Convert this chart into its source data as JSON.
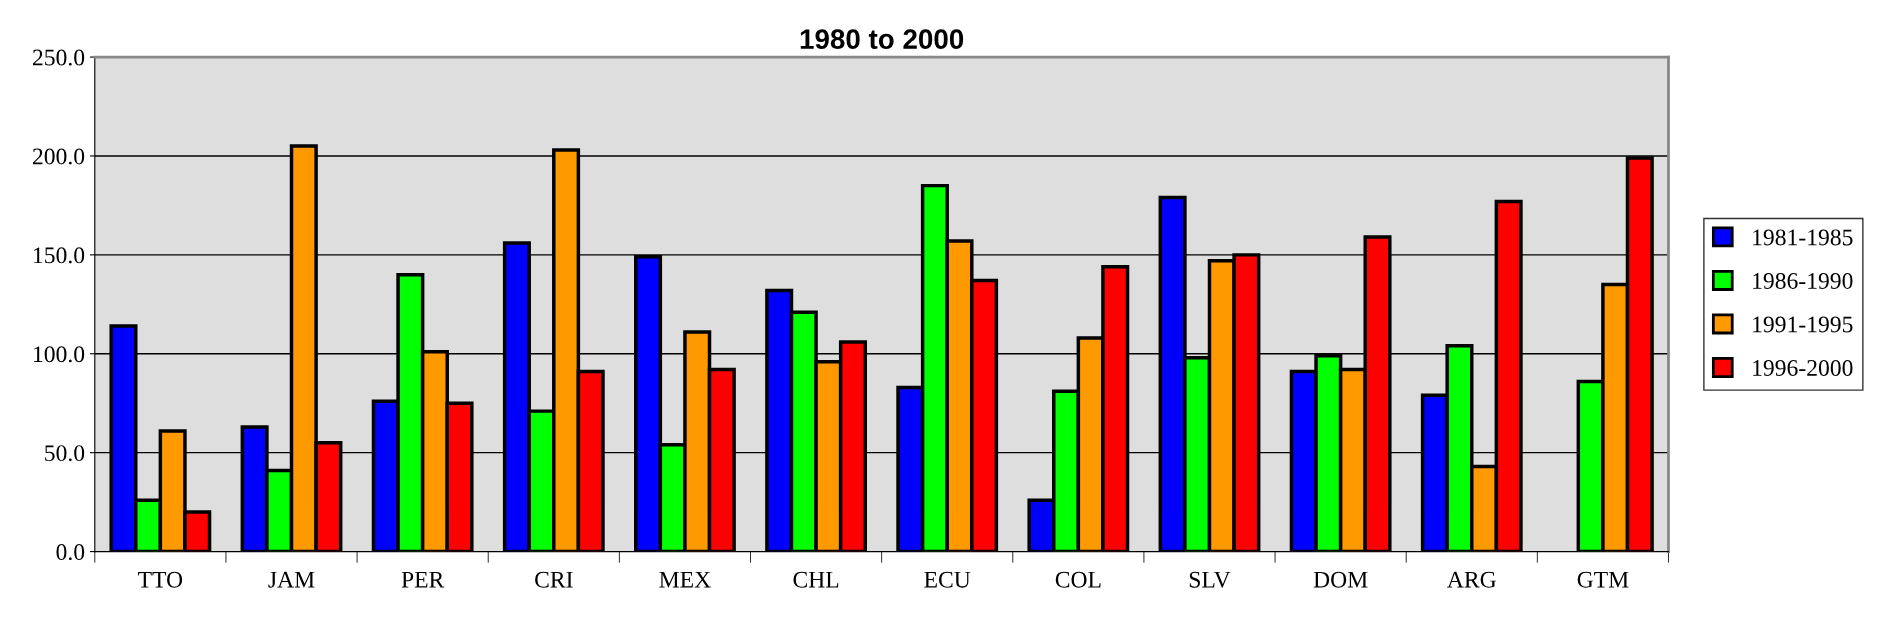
{
  "chart_data": {
    "type": "bar",
    "title": "1980 to 2000",
    "categories": [
      "TTO",
      "JAM",
      "PER",
      "CRI",
      "MEX",
      "CHL",
      "ECU",
      "COL",
      "SLV",
      "DOM",
      "ARG",
      "GTM"
    ],
    "series": [
      {
        "name": "1981-1985",
        "color": "#0000ff",
        "values": [
          114,
          63,
          76,
          156,
          149,
          132,
          83,
          26,
          179,
          91,
          79,
          null
        ]
      },
      {
        "name": "1986-1990",
        "color": "#00ff00",
        "values": [
          26,
          41,
          140,
          71,
          54,
          121,
          185,
          81,
          98,
          99,
          104,
          86
        ]
      },
      {
        "name": "1991-1995",
        "color": "#ff9900",
        "values": [
          61,
          205,
          101,
          203,
          111,
          96,
          157,
          108,
          147,
          92,
          43,
          135
        ]
      },
      {
        "name": "1996-2000",
        "color": "#ff0000",
        "values": [
          20,
          55,
          75,
          91,
          92,
          106,
          137,
          144,
          150,
          159,
          177,
          199
        ]
      }
    ],
    "ylim": [
      0,
      250
    ],
    "yticks": [
      {
        "value": 0,
        "label": "0.0"
      },
      {
        "value": 50,
        "label": "50.0"
      },
      {
        "value": 100,
        "label": "100.0"
      },
      {
        "value": 150,
        "label": "150.0"
      },
      {
        "value": 200,
        "label": "200.0"
      },
      {
        "value": 250,
        "label": "250.0"
      }
    ],
    "grid": "y",
    "legend": "right"
  }
}
